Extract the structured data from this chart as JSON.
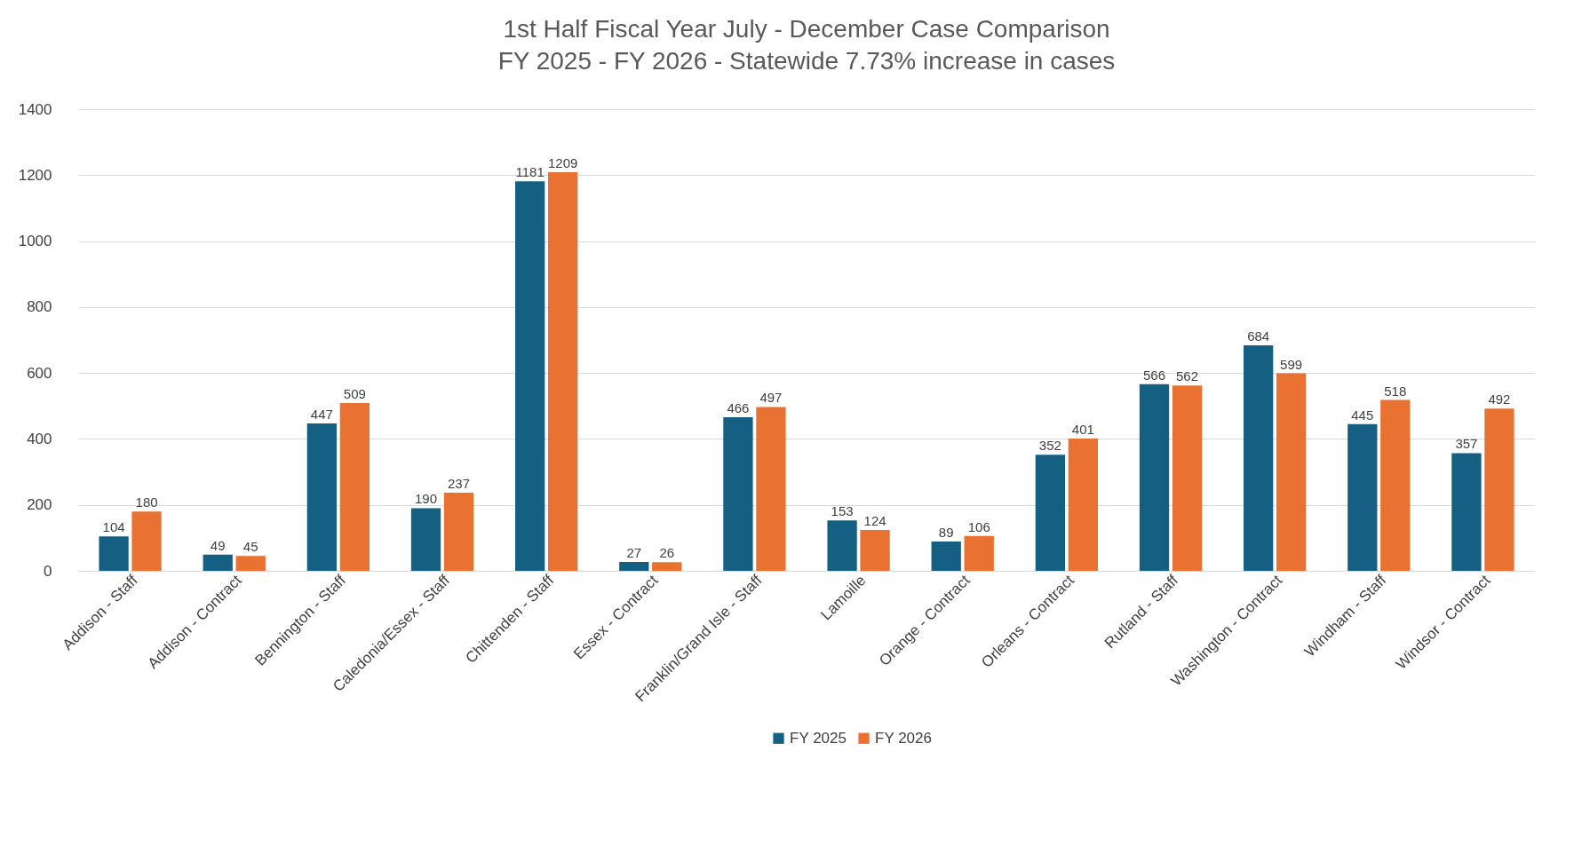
{
  "chart_data": {
    "type": "bar",
    "title": "1st Half Fiscal Year July - December Case Comparison",
    "subtitle": "FY 2025 - FY 2026 - Statewide 7.73% increase in cases",
    "categories": [
      "Addison - Staff",
      "Addison - Contract",
      "Bennington - Staff",
      "Caledonia/Essex - Staff",
      "Chittenden - Staff",
      "Essex - Contract",
      "Franklin/Grand Isle - Staff",
      "Lamoille",
      "Orange - Contract",
      "Orleans - Contract",
      "Rutland - Staff",
      "Washington - Contract",
      "Windham - Staff",
      "Windsor - Contract"
    ],
    "series": [
      {
        "name": "FY 2025",
        "color": "#156082",
        "values": [
          104,
          49,
          447,
          190,
          1181,
          27,
          466,
          153,
          89,
          352,
          566,
          684,
          445,
          357
        ]
      },
      {
        "name": "FY 2026",
        "color": "#e97132",
        "values": [
          180,
          45,
          509,
          237,
          1209,
          26,
          497,
          124,
          106,
          401,
          562,
          599,
          518,
          492
        ]
      }
    ],
    "ylim": [
      0,
      1400
    ],
    "yticks": [
      0,
      200,
      400,
      600,
      800,
      1000,
      1200,
      1400
    ],
    "grid": "y",
    "legend": "bottom",
    "data_labels": true
  }
}
